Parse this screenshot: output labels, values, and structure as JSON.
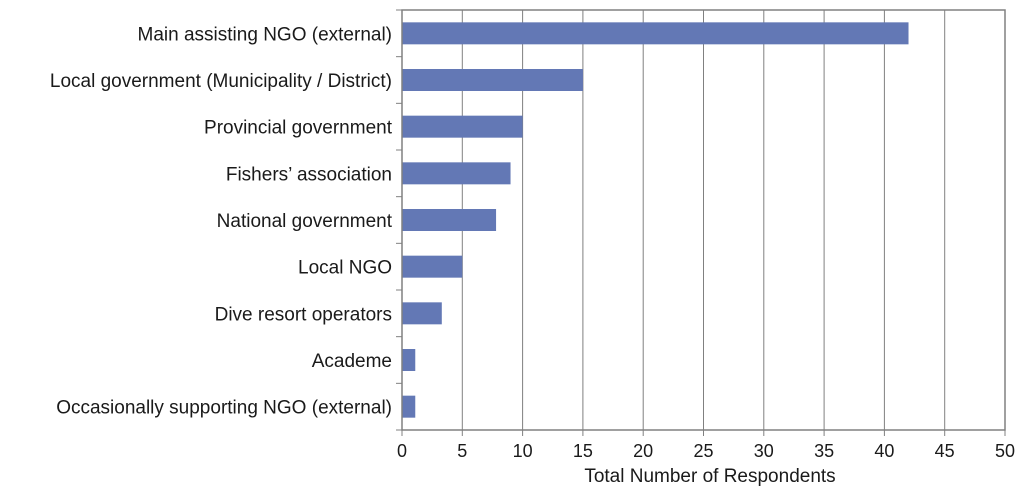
{
  "chart_data": {
    "type": "bar",
    "orientation": "horizontal",
    "categories": [
      "Main assisting NGO (external)",
      "Local government (Municipality / District)",
      "Provincial government",
      "Fishers’ association",
      "National government",
      "Local NGO",
      "Dive resort operators",
      "Academe",
      "Occasionally supporting NGO (external)"
    ],
    "values": [
      42,
      15,
      10,
      9,
      7.8,
      5,
      3.3,
      1.1,
      1.1
    ],
    "title": "",
    "xlabel": "Total Number of Respondents",
    "ylabel": "",
    "xlim": [
      0,
      50
    ],
    "xticks": [
      "0",
      "5",
      "10",
      "15",
      "20",
      "25",
      "30",
      "35",
      "40",
      "45",
      "50"
    ],
    "grid": "vertical",
    "legend": "none",
    "colors": {
      "bar": "#6378b5",
      "grid": "#808080",
      "frame": "#808080"
    }
  }
}
